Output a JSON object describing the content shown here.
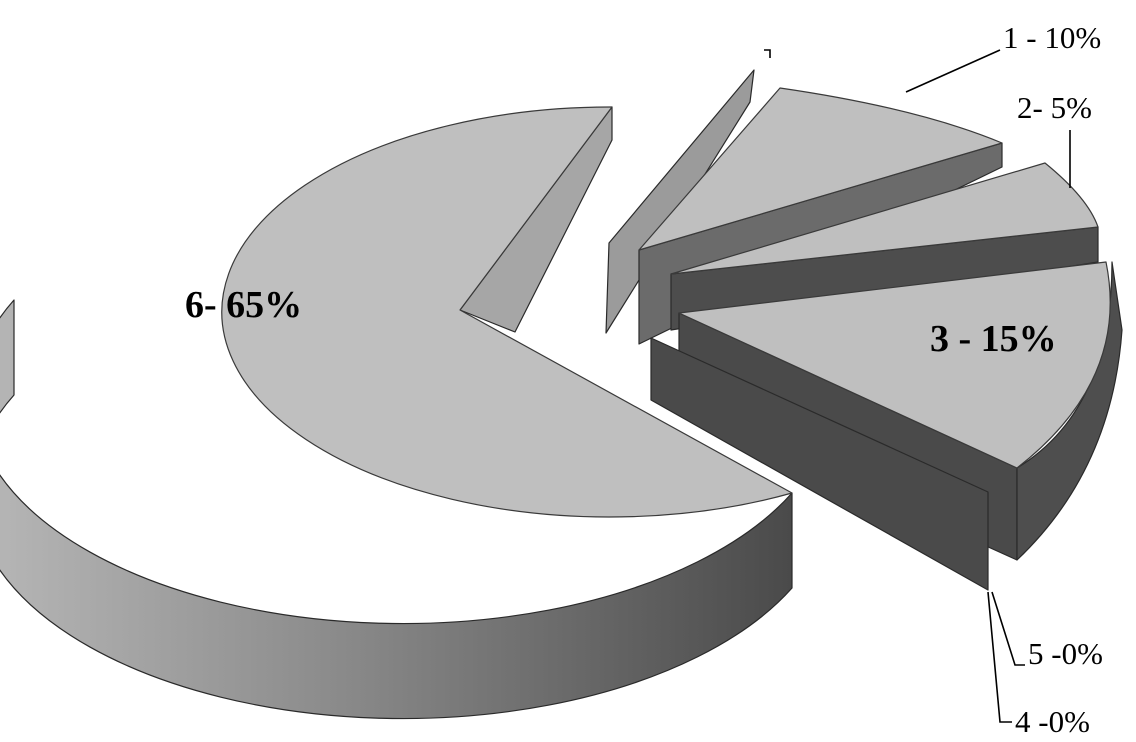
{
  "chart_data": {
    "type": "pie",
    "style": "3d-exploded",
    "slices": [
      {
        "id": "1",
        "label": "1 - 10%",
        "value": 10,
        "label_position": "outside"
      },
      {
        "id": "2",
        "label": "2- 5%",
        "value": 5,
        "label_position": "outside"
      },
      {
        "id": "3",
        "label": "3 - 15%",
        "value": 15,
        "label_position": "inside"
      },
      {
        "id": "4",
        "label": "4 -0%",
        "value": 0,
        "label_position": "outside"
      },
      {
        "id": "5",
        "label": "5 -0%",
        "value": 0,
        "label_position": "outside"
      },
      {
        "id": "6",
        "label": "6- 65%",
        "value": 65,
        "label_position": "inside"
      },
      {
        "id": "7",
        "label": "",
        "value": 5,
        "label_position": "outside"
      }
    ],
    "colors": {
      "top": "#bfbfbf",
      "wall_dark": "#4a4a4a",
      "wall_light": "#9a9a9a",
      "background": "#ffffff"
    },
    "legend": "none"
  }
}
